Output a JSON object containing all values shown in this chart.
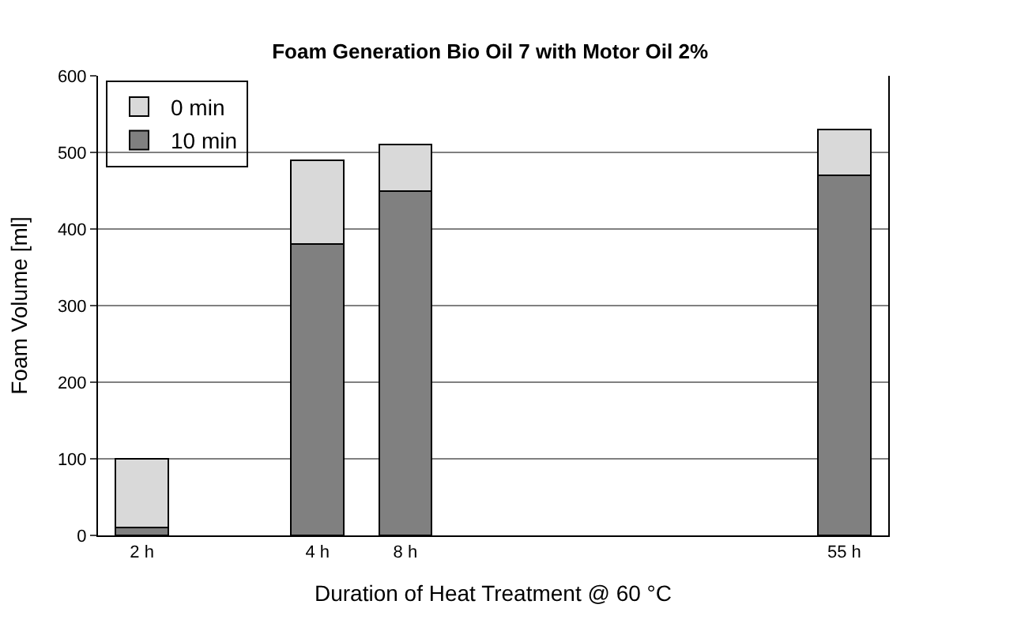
{
  "chart_data": {
    "type": "bar",
    "title": "Foam Generation Bio Oil 7 with Motor Oil 2%",
    "xlabel": "Duration of Heat Treatment @ 60 °C",
    "ylabel": "Foam Volume [ml]",
    "categories": [
      "2 h",
      null,
      "4 h",
      "8 h",
      null,
      null,
      null,
      null,
      "55 h"
    ],
    "stacked": true,
    "series": [
      {
        "name": "10 min",
        "color": "#808080",
        "values": [
          10,
          null,
          380,
          450,
          null,
          null,
          null,
          null,
          470
        ]
      },
      {
        "name": "0 min",
        "color": "#d9d9d9",
        "values": [
          90,
          null,
          110,
          60,
          null,
          null,
          null,
          null,
          60
        ]
      }
    ],
    "ylim": [
      0,
      600
    ],
    "yticks": [
      0,
      100,
      200,
      300,
      400,
      500,
      600
    ],
    "grid": "y",
    "legend": "top left"
  }
}
